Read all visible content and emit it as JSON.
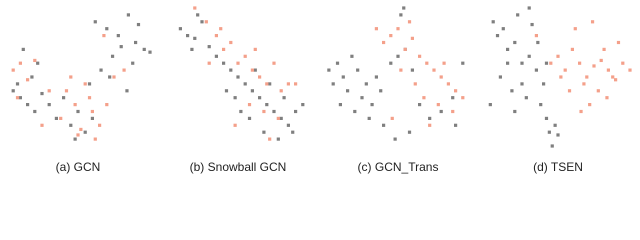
{
  "chart_data": [
    {
      "type": "scatter",
      "caption": "(a) GCN",
      "xlim": [
        0,
        100
      ],
      "ylim": [
        0,
        100
      ],
      "series": [
        {
          "color": "#7f7f7f",
          "x": [
            62,
            70,
            78,
            85,
            92,
            96,
            88,
            74,
            66,
            80,
            90,
            100,
            58,
            72,
            84,
            5,
            10,
            15,
            20,
            25,
            8,
            18,
            30,
            35,
            45,
            50,
            55,
            40,
            48,
            60,
            22,
            12
          ],
          "y": [
            90,
            85,
            80,
            95,
            88,
            70,
            60,
            65,
            55,
            72,
            75,
            68,
            45,
            50,
            40,
            40,
            35,
            30,
            25,
            38,
            45,
            50,
            30,
            20,
            15,
            25,
            10,
            35,
            5,
            20,
            60,
            70
          ]
        },
        {
          "color": "#f4a08a",
          "x": [
            5,
            10,
            15,
            20,
            8,
            42,
            48,
            55,
            60,
            65,
            38,
            50,
            58,
            70,
            75,
            82,
            68,
            45,
            52,
            30,
            25,
            62
          ],
          "y": [
            55,
            60,
            48,
            62,
            35,
            40,
            30,
            45,
            25,
            15,
            20,
            8,
            35,
            30,
            50,
            55,
            80,
            50,
            12,
            40,
            15,
            5
          ]
        }
      ]
    },
    {
      "type": "scatter",
      "caption": "(b) Snowball GCN",
      "xlim": [
        0,
        100
      ],
      "ylim": [
        0,
        100
      ],
      "series": [
        {
          "color": "#7f7f7f",
          "x": [
            10,
            15,
            20,
            25,
            30,
            18,
            22,
            35,
            40,
            45,
            50,
            55,
            60,
            65,
            70,
            75,
            80,
            85,
            90,
            95,
            48,
            58,
            68,
            78,
            88,
            42,
            62,
            72,
            52,
            82
          ],
          "y": [
            85,
            80,
            78,
            90,
            72,
            70,
            95,
            65,
            60,
            55,
            50,
            45,
            40,
            35,
            30,
            25,
            20,
            15,
            25,
            30,
            35,
            20,
            10,
            5,
            10,
            40,
            55,
            45,
            25,
            35
          ]
        },
        {
          "color": "#f4a08a",
          "x": [
            20,
            28,
            35,
            40,
            45,
            50,
            55,
            60,
            65,
            70,
            75,
            80,
            85,
            30,
            38,
            58,
            68,
            78,
            90,
            48,
            62,
            72
          ],
          "y": [
            100,
            90,
            80,
            70,
            75,
            60,
            65,
            55,
            50,
            45,
            60,
            40,
            45,
            60,
            85,
            30,
            25,
            20,
            45,
            15,
            70,
            5
          ]
        }
      ]
    },
    {
      "type": "scatter",
      "caption": "(c) GCN_Trans",
      "xlim": [
        0,
        100
      ],
      "ylim": [
        0,
        100
      ],
      "series": [
        {
          "color": "#7f7f7f",
          "x": [
            2,
            5,
            8,
            12,
            15,
            18,
            22,
            25,
            28,
            32,
            35,
            38,
            10,
            20,
            30,
            40,
            45,
            50,
            55,
            60,
            65,
            72,
            80,
            88,
            95,
            58,
            48,
            90,
            52,
            54
          ],
          "y": [
            55,
            45,
            60,
            50,
            40,
            65,
            55,
            35,
            45,
            30,
            50,
            40,
            30,
            25,
            20,
            15,
            60,
            65,
            70,
            55,
            30,
            20,
            25,
            35,
            60,
            10,
            5,
            15,
            95,
            100
          ]
        },
        {
          "color": "#f4a08a",
          "x": [
            40,
            45,
            50,
            55,
            60,
            65,
            70,
            75,
            80,
            85,
            90,
            95,
            62,
            68,
            78,
            88,
            35,
            52,
            72,
            82,
            58,
            46
          ],
          "y": [
            75,
            80,
            85,
            70,
            78,
            65,
            60,
            55,
            50,
            45,
            40,
            35,
            45,
            35,
            30,
            25,
            85,
            55,
            15,
            60,
            90,
            20
          ]
        }
      ]
    },
    {
      "type": "scatter",
      "caption": "(d) TSEN",
      "xlim": [
        0,
        100
      ],
      "ylim": [
        0,
        100
      ],
      "series": [
        {
          "color": "#7f7f7f",
          "x": [
            5,
            8,
            12,
            15,
            20,
            25,
            30,
            35,
            40,
            10,
            18,
            28,
            38,
            22,
            32,
            42,
            48,
            44,
            46,
            50,
            15,
            25,
            3,
            36,
            42,
            30,
            20
          ],
          "y": [
            90,
            80,
            85,
            70,
            75,
            60,
            65,
            55,
            45,
            50,
            40,
            35,
            30,
            95,
            88,
            20,
            15,
            10,
            0,
            8,
            60,
            45,
            30,
            75,
            60,
            100,
            25
          ]
        },
        {
          "color": "#f4a08a",
          "x": [
            50,
            55,
            60,
            65,
            70,
            75,
            80,
            85,
            90,
            95,
            100,
            58,
            68,
            78,
            88,
            62,
            72,
            82,
            92,
            66,
            74,
            84,
            35,
            45,
            52
          ],
          "y": [
            65,
            55,
            70,
            60,
            50,
            58,
            62,
            55,
            48,
            60,
            55,
            40,
            45,
            40,
            50,
            85,
            30,
            70,
            75,
            25,
            90,
            35,
            80,
            60,
            50
          ]
        }
      ]
    }
  ]
}
